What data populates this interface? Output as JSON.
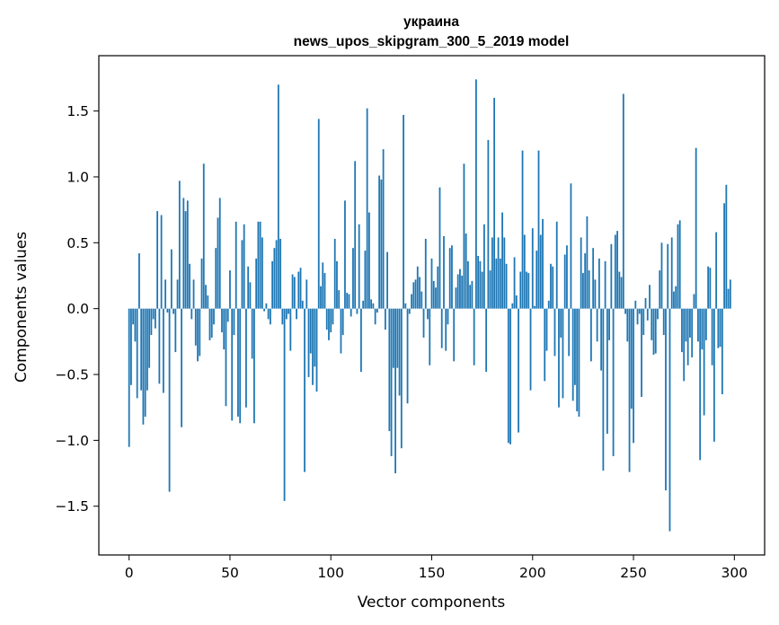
{
  "chart_data": {
    "type": "bar",
    "title": "украина",
    "subtitle": "news_upos_skipgram_300_5_2019 model",
    "xlabel": "Vector components",
    "ylabel": "Components values",
    "xlim": [
      -15,
      315
    ],
    "ylim": [
      -1.87,
      1.92
    ],
    "x_ticks": [
      0,
      50,
      100,
      150,
      200,
      250,
      300
    ],
    "x_tick_labels": [
      "0",
      "50",
      "100",
      "150",
      "200",
      "250",
      "300"
    ],
    "y_ticks": [
      -1.5,
      -1.0,
      -0.5,
      0.0,
      0.5,
      1.0,
      1.5
    ],
    "y_tick_labels": [
      "−1.5",
      "−1.0",
      "−0.5",
      "0.0",
      "0.5",
      "1.0",
      "1.5"
    ],
    "bar_color": "#1f77b4",
    "grid": false,
    "values": [
      -1.05,
      -0.58,
      -0.12,
      -0.25,
      -0.68,
      0.42,
      -0.62,
      -0.88,
      -0.82,
      -0.62,
      -0.45,
      -0.2,
      -0.08,
      -0.15,
      0.74,
      -0.57,
      0.71,
      -0.64,
      0.22,
      -0.03,
      -1.39,
      0.45,
      -0.04,
      -0.33,
      0.22,
      0.97,
      -0.9,
      0.84,
      0.74,
      0.82,
      0.34,
      -0.08,
      0.22,
      -0.28,
      -0.4,
      -0.36,
      0.38,
      1.1,
      0.18,
      0.1,
      -0.24,
      -0.22,
      -0.12,
      0.46,
      0.69,
      0.84,
      -0.18,
      -0.31,
      -0.74,
      -0.1,
      0.29,
      -0.85,
      -0.2,
      0.66,
      -0.82,
      -0.87,
      0.52,
      0.64,
      -0.75,
      0.32,
      0.2,
      -0.38,
      -0.87,
      0.38,
      0.66,
      0.66,
      0.54,
      -0.02,
      0.04,
      -0.08,
      -0.12,
      0.36,
      0.46,
      0.52,
      1.7,
      0.53,
      -0.12,
      -1.46,
      -0.08,
      -0.04,
      -0.32,
      0.26,
      0.24,
      -0.08,
      0.28,
      0.31,
      0.06,
      -1.24,
      0.22,
      -0.52,
      -0.34,
      -0.58,
      -0.44,
      -0.63,
      1.44,
      0.17,
      0.35,
      0.27,
      -0.16,
      -0.24,
      -0.18,
      -0.12,
      0.53,
      0.36,
      0.14,
      -0.34,
      -0.2,
      0.82,
      0.12,
      0.11,
      -0.06,
      0.46,
      1.12,
      -0.04,
      0.64,
      -0.48,
      0.06,
      0.44,
      1.52,
      0.73,
      0.07,
      0.04,
      -0.12,
      -0.03,
      1.01,
      0.98,
      1.21,
      -0.16,
      0.43,
      -0.93,
      -1.12,
      -0.45,
      -1.25,
      -0.45,
      -0.66,
      -1.06,
      1.47,
      0.04,
      -0.72,
      -0.04,
      0.11,
      0.2,
      0.22,
      0.32,
      0.24,
      0.13,
      -0.22,
      0.53,
      -0.08,
      -0.43,
      0.38,
      0.21,
      0.16,
      0.32,
      0.92,
      -0.3,
      0.55,
      -0.32,
      -0.12,
      0.46,
      0.48,
      -0.4,
      0.16,
      0.26,
      0.3,
      0.25,
      1.1,
      0.57,
      0.36,
      0.18,
      0.21,
      -0.43,
      1.74,
      0.4,
      0.36,
      0.28,
      0.64,
      -0.48,
      1.28,
      0.29,
      0.54,
      1.6,
      0.38,
      0.54,
      0.38,
      0.73,
      0.54,
      0.34,
      -1.02,
      -1.03,
      0.04,
      0.39,
      0.1,
      -0.94,
      0.28,
      1.2,
      0.56,
      0.28,
      0.27,
      -0.62,
      0.61,
      0.02,
      0.44,
      1.2,
      0.56,
      0.68,
      -0.55,
      -0.32,
      0.06,
      0.34,
      0.32,
      -0.36,
      0.66,
      -0.75,
      -0.22,
      -0.68,
      0.41,
      0.48,
      -0.36,
      0.95,
      -0.7,
      -0.58,
      -0.78,
      -0.82,
      0.54,
      0.27,
      0.42,
      0.7,
      0.29,
      -0.4,
      0.46,
      0.22,
      -0.25,
      0.38,
      -0.47,
      -1.23,
      0.36,
      -0.95,
      -0.24,
      0.49,
      -1.12,
      0.56,
      0.59,
      0.28,
      0.24,
      1.63,
      -0.04,
      -0.25,
      -1.24,
      -0.76,
      -1.02,
      0.06,
      -0.12,
      -0.04,
      -0.67,
      -0.2,
      0.08,
      -0.09,
      0.18,
      -0.24,
      -0.35,
      -0.34,
      -0.08,
      0.29,
      0.5,
      -0.2,
      -1.38,
      0.49,
      -1.69,
      0.54,
      0.13,
      0.17,
      0.64,
      0.67,
      -0.33,
      -0.55,
      -0.25,
      -0.43,
      -0.22,
      -0.37,
      0.11,
      1.22,
      -0.25,
      -1.15,
      -0.31,
      -0.81,
      -0.24,
      0.32,
      0.31,
      -0.43,
      -1.01,
      0.58,
      -0.3,
      -0.29,
      -0.65,
      0.8,
      0.94,
      0.15,
      0.22
    ]
  }
}
